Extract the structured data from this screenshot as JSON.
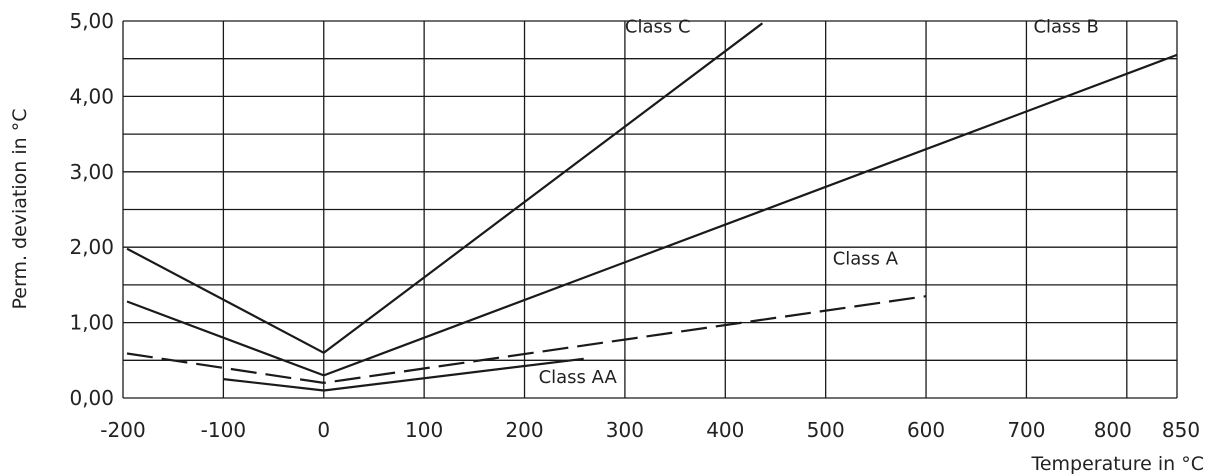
{
  "chart_data": {
    "type": "line",
    "title": "",
    "xlabel": "Temperature in °C",
    "ylabel": "Perm. deviation in °C",
    "grid": true,
    "xlim": [
      -200,
      850
    ],
    "ylim": [
      0,
      5
    ],
    "x_grid_values": [
      -200,
      -100,
      0,
      100,
      200,
      300,
      400,
      500,
      600,
      700,
      800,
      850
    ],
    "y_grid_values": [
      0,
      0.5,
      1,
      1.5,
      2,
      2.5,
      3,
      3.5,
      4,
      4.5,
      5
    ],
    "x_tick_labels": [
      {
        "value": -200,
        "label": "-200"
      },
      {
        "value": -100,
        "label": "-100"
      },
      {
        "value": 0,
        "label": "0"
      },
      {
        "value": 100,
        "label": "100"
      },
      {
        "value": 200,
        "label": "200"
      },
      {
        "value": 300,
        "label": "300"
      },
      {
        "value": 400,
        "label": "400"
      },
      {
        "value": 500,
        "label": "500"
      },
      {
        "value": 600,
        "label": "600"
      },
      {
        "value": 700,
        "label": "700"
      },
      {
        "value": 800,
        "label": "800"
      },
      {
        "value": 850,
        "label": "850"
      }
    ],
    "y_tick_labels": [
      {
        "value": 0,
        "label": "0,00"
      },
      {
        "value": 1,
        "label": "1,00"
      },
      {
        "value": 2,
        "label": "2,00"
      },
      {
        "value": 3,
        "label": "3,00"
      },
      {
        "value": 4,
        "label": "4,00"
      },
      {
        "value": 5,
        "label": "5,00"
      }
    ],
    "series": [
      {
        "name": "Class C",
        "dashed": false,
        "label_anchor": [
          300,
          4.85
        ],
        "points": [
          [
            -196,
            1.98
          ],
          [
            0,
            0.6
          ],
          [
            437,
            4.97
          ]
        ]
      },
      {
        "name": "Class B",
        "dashed": false,
        "label_anchor": [
          707,
          4.85
        ],
        "points": [
          [
            -196,
            1.28
          ],
          [
            0,
            0.3
          ],
          [
            850,
            4.55
          ]
        ]
      },
      {
        "name": "Class A",
        "dashed": true,
        "label_anchor": [
          507,
          1.77
        ],
        "points": [
          [
            -196,
            0.59
          ],
          [
            0,
            0.2
          ],
          [
            600,
            1.35
          ]
        ]
      },
      {
        "name": "Class AA",
        "dashed": false,
        "label_anchor": [
          214,
          0.2
        ],
        "points": [
          [
            -100,
            0.25
          ],
          [
            0,
            0.1
          ],
          [
            259,
            0.52
          ]
        ]
      }
    ]
  }
}
